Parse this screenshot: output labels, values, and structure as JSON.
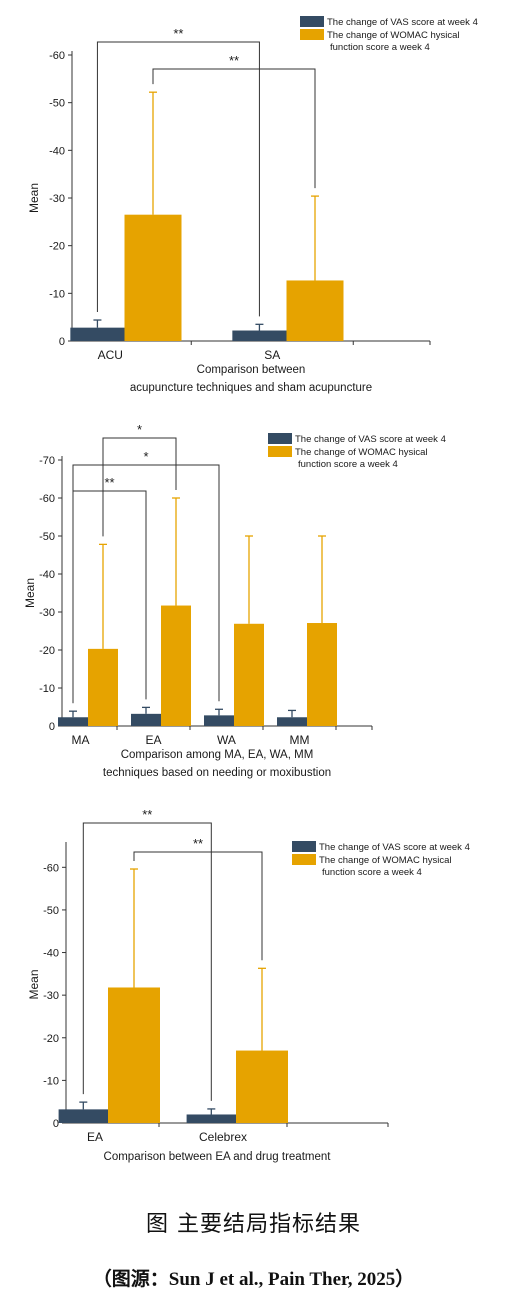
{
  "colors": {
    "vas": "#344B63",
    "womac": "#E6A300",
    "axis": "#333333"
  },
  "figure": {
    "caption": "图  主要结局指标结果",
    "source": "（图源：Sun J et al., Pain Ther, 2025）"
  },
  "chart_data": [
    {
      "type": "bar",
      "categories": [
        "ACU",
        "SA"
      ],
      "ylabel": "Mean",
      "xlabel_lines": [
        "Comparison between",
        "acupuncture techniques and sham acupuncture"
      ],
      "ylim": [
        0,
        -60
      ],
      "yticks": [
        0,
        -10,
        -20,
        -30,
        -40,
        -50,
        -60
      ],
      "y_inverted": true,
      "legend_position": "top-right",
      "series": [
        {
          "name": "The change of VAS score at week 4",
          "values": [
            -2.8,
            -2.2
          ],
          "errors": [
            1.6,
            1.3
          ]
        },
        {
          "name_lines": [
            "The change of WOMAC hysical",
            "function score a week 4"
          ],
          "values": [
            -26.5,
            -12.7
          ],
          "errors": [
            25.7,
            17.7
          ]
        }
      ],
      "significance": [
        {
          "label": "**",
          "from": [
            0,
            0
          ],
          "to": [
            1,
            0
          ]
        },
        {
          "label": "**",
          "from": [
            0,
            1
          ],
          "to": [
            1,
            1
          ]
        }
      ]
    },
    {
      "type": "bar",
      "categories": [
        "MA",
        "EA",
        "WA",
        "MM"
      ],
      "ylabel": "Mean",
      "xlabel_lines": [
        "Comparison among MA, EA, WA, MM",
        "techniques based on needing or moxibustion"
      ],
      "ylim": [
        0,
        -70
      ],
      "yticks": [
        0,
        -10,
        -20,
        -30,
        -40,
        -50,
        -60,
        -70
      ],
      "y_inverted": true,
      "legend_position": "top-right",
      "series": [
        {
          "name": "The change of VAS score at week 4",
          "values": [
            -2.3,
            -3.2,
            -2.8,
            -2.3
          ],
          "errors": [
            1.6,
            1.7,
            1.6,
            1.8
          ]
        },
        {
          "name_lines": [
            "The change of WOMAC hysical",
            "function score a week 4"
          ],
          "values": [
            -20.3,
            -31.7,
            -26.9,
            -27.1
          ],
          "errors": [
            27.5,
            28.3,
            23.1,
            22.9
          ]
        }
      ],
      "significance": [
        {
          "label": "*",
          "from": [
            0,
            1
          ],
          "to": [
            1,
            1
          ]
        },
        {
          "label": "*",
          "from": [
            0,
            0
          ],
          "to": [
            2,
            0
          ]
        },
        {
          "label": "**",
          "from": [
            0,
            0
          ],
          "to": [
            1,
            0
          ]
        }
      ]
    },
    {
      "type": "bar",
      "categories": [
        "EA",
        "Celebrex"
      ],
      "ylabel": "Mean",
      "xlabel_lines": [
        "Comparison between EA and drug treatment"
      ],
      "ylim": [
        0,
        -65
      ],
      "yticks": [
        0,
        -10,
        -20,
        -30,
        -40,
        -50,
        -60
      ],
      "y_inverted": true,
      "legend_position": "top-right",
      "series": [
        {
          "name": "The change of VAS score at week 4",
          "values": [
            -3.2,
            -2.0
          ],
          "errors": [
            1.7,
            1.3
          ]
        },
        {
          "name_lines": [
            "The change of WOMAC hysical",
            "function score a week 4"
          ],
          "values": [
            -31.8,
            -17.0
          ],
          "errors": [
            27.8,
            19.3
          ]
        }
      ],
      "significance": [
        {
          "label": "**",
          "from": [
            0,
            0
          ],
          "to": [
            1,
            0
          ]
        },
        {
          "label": "**",
          "from": [
            0,
            1
          ],
          "to": [
            1,
            1
          ]
        }
      ]
    }
  ]
}
